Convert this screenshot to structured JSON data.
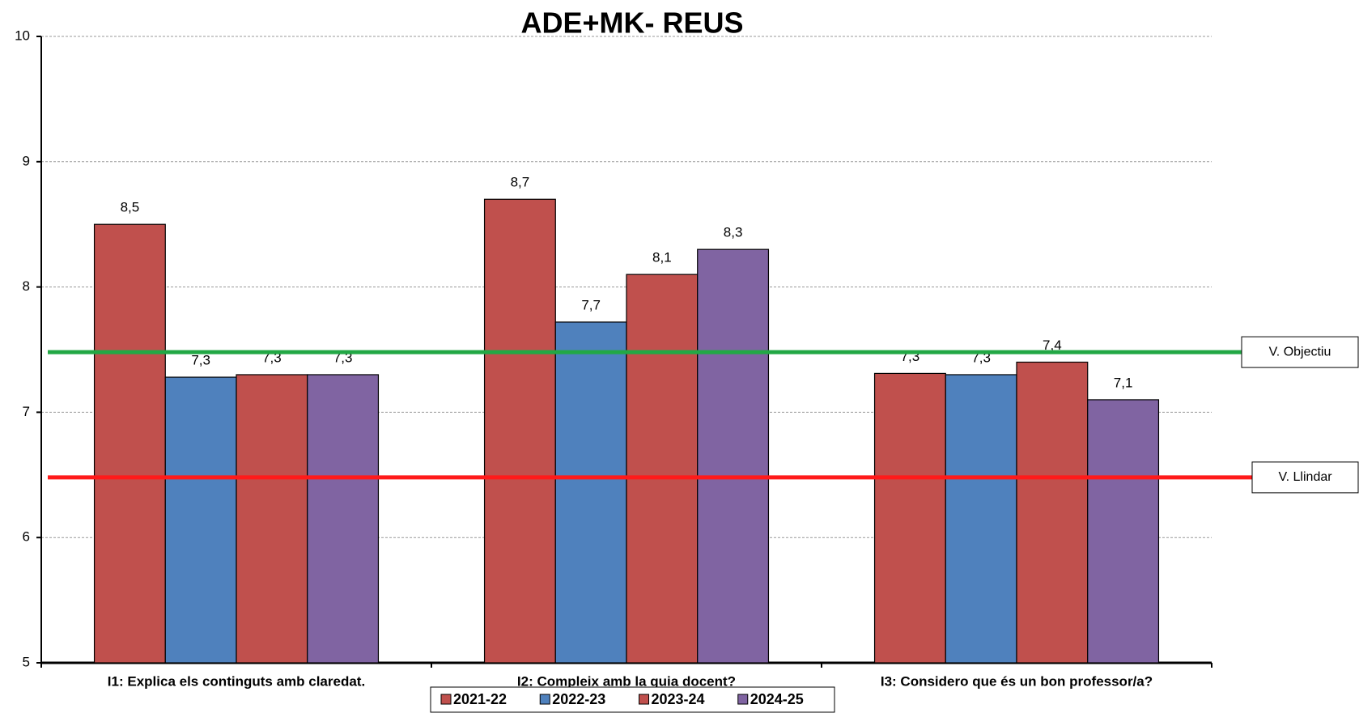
{
  "chart_data": {
    "type": "bar",
    "title": "ADE+MK- REUS",
    "categories": [
      "I1: Explica els continguts amb claredat.",
      "I2: Compleix amb la guia docent?",
      "I3: Considero que és un bon professor/a?"
    ],
    "series": [
      {
        "name": "2021-22",
        "color": "#c0504d",
        "values": [
          8.5,
          8.7,
          7.31
        ],
        "value_labels": [
          "8,5",
          "8,7",
          "7,3"
        ]
      },
      {
        "name": "2022-23",
        "color": "#4f81bd",
        "values": [
          7.28,
          7.72,
          7.3
        ],
        "value_labels": [
          "7,3",
          "7,7",
          "7,3"
        ]
      },
      {
        "name": "2023-24",
        "color": "#c0504d",
        "values": [
          7.3,
          8.1,
          7.4
        ],
        "value_labels": [
          "7,3",
          "8,1",
          "7,4"
        ]
      },
      {
        "name": "2024-25",
        "color": "#8064a2",
        "values": [
          7.3,
          8.3,
          7.1
        ],
        "value_labels": [
          "7,3",
          "8,3",
          "7,1"
        ]
      }
    ],
    "reference_lines": [
      {
        "name": "V. Objectiu",
        "value": 7.48,
        "color": "#22a845"
      },
      {
        "name": "V. Llindar",
        "value": 6.48,
        "color": "#ff1a1a"
      }
    ],
    "ylim": [
      5,
      10
    ],
    "yticks": [
      5,
      6,
      7,
      8,
      9,
      10
    ],
    "grid": true
  }
}
